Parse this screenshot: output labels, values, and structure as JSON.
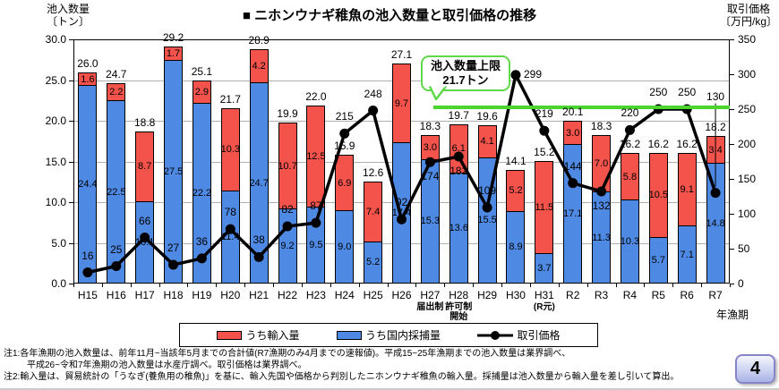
{
  "chart_data": {
    "type": "bar",
    "subtype": "stacked-bar-with-line-overlay",
    "title": "■ ニホンウナギ稚魚の池入数量と取引価格の推移",
    "categories": [
      "H15",
      "H16",
      "H17",
      "H18",
      "H19",
      "H20",
      "H21",
      "H22",
      "H23",
      "H24",
      "H25",
      "H26",
      "H27",
      "H28",
      "H29",
      "H30",
      "H31",
      "R2",
      "R3",
      "R4",
      "R5",
      "R6",
      "R7"
    ],
    "series": [
      {
        "name": "うち輸入量",
        "role": "bar-stack-top",
        "color": "#f4534b",
        "values": [
          "1.6",
          "2.2",
          "8.7",
          "1.7",
          "2.9",
          "10.3",
          "4.2",
          "10.7",
          "12.5",
          "6.9",
          "7.4",
          "9.7",
          "3.0",
          "6.1",
          "4.1",
          "5.2",
          "11.5",
          "3.0",
          "7.0",
          "5.8",
          "10.5",
          "9.1",
          "3.4"
        ]
      },
      {
        "name": "うち国内採捕量",
        "role": "bar-stack-bottom",
        "color": "#4e8ae4",
        "values": [
          "24.4",
          "22.5",
          "10.1",
          "27.5",
          "22.2",
          "11.4",
          "24.7",
          "9.2",
          "9.5",
          "9.0",
          "5.2",
          "17.4",
          "15.3",
          "13.6",
          "15.5",
          "8.9",
          "3.7",
          "17.1",
          "11.3",
          "10.3",
          "5.7",
          "7.1",
          "14.8"
        ]
      },
      {
        "name": "取引価格",
        "role": "line",
        "axis": "right",
        "color": "#000000",
        "values": [
          16,
          25,
          66,
          27,
          36,
          78,
          38,
          82,
          87,
          215,
          248,
          92,
          174,
          182,
          109,
          299,
          219,
          144,
          132,
          220,
          250,
          250,
          130
        ]
      }
    ],
    "totals": [
      "26.0",
      "24.7",
      "18.8",
      "29.2",
      "25.1",
      "21.7",
      "28.9",
      "19.9",
      "22.0",
      "15.9",
      "12.6",
      "27.1",
      "18.3",
      "19.7",
      "19.6",
      "14.1",
      "15.2",
      "20.1",
      "18.3",
      "16.2",
      "16.2",
      "16.2",
      "18.2"
    ],
    "left_axis": {
      "title_lines": [
        "池入数量",
        "〔トン〕"
      ],
      "min": 0,
      "max": 30,
      "step": 5,
      "tick_labels": [
        "0.0",
        "5.0",
        "10.0",
        "15.0",
        "20.0",
        "25.0",
        "30.0"
      ]
    },
    "right_axis": {
      "title_lines": [
        "取引価格",
        "〔万円/kg〕"
      ],
      "min": 0,
      "max": 350,
      "step": 50,
      "tick_labels": [
        "0",
        "50",
        "100",
        "150",
        "200",
        "250",
        "300",
        "350"
      ]
    },
    "x_axis_title": "年漁期",
    "x_sub_labels": [
      {
        "index": 12,
        "lines": [
          "届出制"
        ]
      },
      {
        "index": 13,
        "lines": [
          "許可制",
          "開始"
        ]
      },
      {
        "index": 16,
        "lines": [
          "(R元)"
        ]
      }
    ],
    "limit_line": {
      "value": 21.7,
      "color": "#49d52e",
      "border_color": "#5fd84a",
      "callout_line1": "池入数量上限",
      "callout_line2": "21.7トン"
    },
    "price_label_positions": [
      "a",
      "a",
      "a",
      "a",
      "a",
      "a",
      "a",
      "a",
      "a",
      "a",
      "a",
      "a",
      "b",
      "b",
      "a",
      "r",
      "a",
      "a",
      "b",
      "a",
      "a",
      "a",
      "A"
    ],
    "grid": "horizontal",
    "legend_position": "bottom"
  },
  "footnotes": {
    "note1_line1": "注1:各年漁期の池入数量は、前年11月~当該年5月までの合計値(R7漁期のみ4月までの速報値)。平成15~25年漁期までの池入数量は業界調べ、",
    "note1_line2": "平成26~令和7年漁期の池入数量は水産庁調べ。取引価格は業界調べ。",
    "note2": "注2:輸入量は、貿易統計の「うなぎ(養魚用の稚魚)」を基に、輸入先国や価格から判別したニホンウナギ稚魚の輸入量。採捕量は池入数量から輸入量を差し引いて算出。"
  },
  "page_number": "4"
}
